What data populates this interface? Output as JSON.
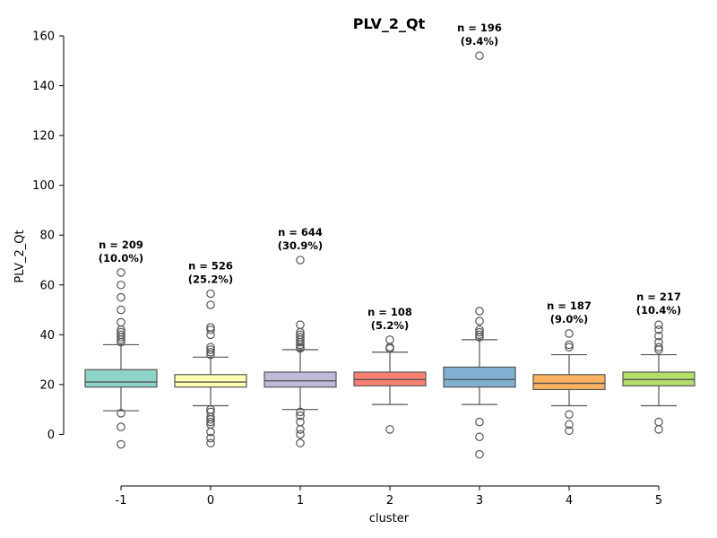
{
  "chart_data": {
    "type": "box",
    "title": "PLV_2_Qt",
    "xlabel": "cluster",
    "ylabel": "PLV_2_Qt",
    "ylim": [
      -20,
      160
    ],
    "yticks": [
      0,
      20,
      40,
      60,
      80,
      100,
      120,
      140,
      160
    ],
    "grid": false,
    "legend": "none",
    "categories": [
      "-1",
      "0",
      "1",
      "2",
      "3",
      "4",
      "5"
    ],
    "boxes": [
      {
        "cluster": "-1",
        "color": "#8dd3c7",
        "q1": 19,
        "median": 21,
        "q3": 26,
        "whisker_low": 9.5,
        "whisker_high": 36,
        "outliers": [
          37,
          38,
          39,
          40,
          41,
          42,
          45,
          50,
          55,
          60,
          65,
          8.5,
          3,
          -4
        ],
        "n_label": "n = 209",
        "pct_label": "(10.0%)"
      },
      {
        "cluster": "0",
        "color": "#ffffb3",
        "q1": 19,
        "median": 21,
        "q3": 24,
        "whisker_low": 11.5,
        "whisker_high": 31,
        "outliers": [
          32,
          33,
          34,
          35,
          40,
          42,
          43,
          52,
          56.5,
          10,
          9,
          7,
          6,
          5,
          4,
          1,
          -1.5,
          -3.5
        ],
        "n_label": "n = 526",
        "pct_label": "(25.2%)"
      },
      {
        "cluster": "1",
        "color": "#bebada",
        "q1": 19,
        "median": 21.5,
        "q3": 25,
        "whisker_low": 10,
        "whisker_high": 34,
        "outliers": [
          34.5,
          35,
          36,
          37,
          38,
          39,
          40,
          41,
          44,
          70,
          9,
          7.5,
          5,
          2,
          0,
          -3.5
        ],
        "n_label": "n = 644",
        "pct_label": "(30.9%)"
      },
      {
        "cluster": "2",
        "color": "#fb8072",
        "q1": 19.5,
        "median": 22,
        "q3": 25,
        "whisker_low": 12,
        "whisker_high": 33,
        "outliers": [
          34.5,
          35,
          38,
          2
        ],
        "n_label": "n = 108",
        "pct_label": "(5.2%)"
      },
      {
        "cluster": "3",
        "color": "#80b1d3",
        "q1": 19,
        "median": 22,
        "q3": 27,
        "whisker_low": 12,
        "whisker_high": 38,
        "outliers": [
          39,
          40,
          41,
          42,
          45.5,
          49.5,
          152,
          5,
          -1,
          -8
        ],
        "n_label": "n = 196",
        "pct_label": "(9.4%)"
      },
      {
        "cluster": "4",
        "color": "#fdb462",
        "q1": 18,
        "median": 20.5,
        "q3": 24,
        "whisker_low": 11.5,
        "whisker_high": 32,
        "outliers": [
          35,
          36,
          40.5,
          8,
          4,
          1.5
        ],
        "n_label": "n = 187",
        "pct_label": "(9.0%)"
      },
      {
        "cluster": "5",
        "color": "#b3de69",
        "q1": 19.5,
        "median": 22,
        "q3": 25,
        "whisker_low": 11.5,
        "whisker_high": 32,
        "outliers": [
          34,
          35,
          37,
          39.5,
          42,
          44,
          5,
          2
        ],
        "n_label": "n = 217",
        "pct_label": "(10.4%)"
      }
    ]
  }
}
